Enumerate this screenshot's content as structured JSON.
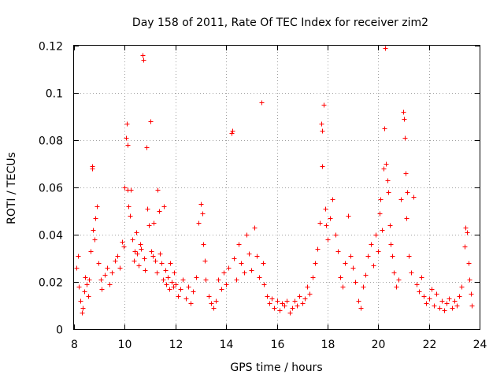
{
  "chart_data": {
    "type": "scatter",
    "title": "Day 158 of 2011, Rate Of TEC Index for receiver zim2",
    "xlabel": "GPS time / hours",
    "ylabel": "ROTI / TECUs",
    "xlim": [
      8,
      24
    ],
    "ylim": [
      0,
      0.12
    ],
    "xticks": [
      8,
      10,
      12,
      14,
      16,
      18,
      20,
      22,
      24
    ],
    "xtick_labels": [
      "8",
      "10",
      "12",
      "14",
      "16",
      "18",
      "20",
      "22",
      "24"
    ],
    "yticks": [
      0,
      0.02,
      0.04,
      0.06,
      0.08,
      0.1,
      0.12
    ],
    "ytick_labels": [
      "0",
      "0.02",
      "0.04",
      "0.06",
      "0.08",
      "0.1",
      "0.12"
    ],
    "grid": true,
    "marker": "+",
    "color": "#ff0000",
    "series": [
      {
        "name": "ROTI",
        "points": [
          [
            8.1,
            0.026
          ],
          [
            8.15,
            0.031
          ],
          [
            8.2,
            0.018
          ],
          [
            8.25,
            0.012
          ],
          [
            8.3,
            0.007
          ],
          [
            8.35,
            0.009
          ],
          [
            8.4,
            0.016
          ],
          [
            8.45,
            0.022
          ],
          [
            8.5,
            0.019
          ],
          [
            8.55,
            0.014
          ],
          [
            8.6,
            0.021
          ],
          [
            8.65,
            0.033
          ],
          [
            8.7,
            0.069
          ],
          [
            8.72,
            0.068
          ],
          [
            8.75,
            0.042
          ],
          [
            8.8,
            0.038
          ],
          [
            8.85,
            0.047
          ],
          [
            8.9,
            0.052
          ],
          [
            8.95,
            0.028
          ],
          [
            9.05,
            0.021
          ],
          [
            9.1,
            0.017
          ],
          [
            9.2,
            0.023
          ],
          [
            9.3,
            0.026
          ],
          [
            9.4,
            0.019
          ],
          [
            9.5,
            0.024
          ],
          [
            9.6,
            0.029
          ],
          [
            9.7,
            0.031
          ],
          [
            9.8,
            0.026
          ],
          [
            9.9,
            0.037
          ],
          [
            9.95,
            0.035
          ],
          [
            10.0,
            0.06
          ],
          [
            10.05,
            0.081
          ],
          [
            10.08,
            0.087
          ],
          [
            10.1,
            0.078
          ],
          [
            10.12,
            0.059
          ],
          [
            10.15,
            0.052
          ],
          [
            10.2,
            0.048
          ],
          [
            10.25,
            0.059
          ],
          [
            10.3,
            0.038
          ],
          [
            10.35,
            0.029
          ],
          [
            10.4,
            0.033
          ],
          [
            10.45,
            0.041
          ],
          [
            10.5,
            0.032
          ],
          [
            10.55,
            0.027
          ],
          [
            10.6,
            0.036
          ],
          [
            10.65,
            0.034
          ],
          [
            10.7,
            0.116
          ],
          [
            10.72,
            0.114
          ],
          [
            10.75,
            0.03
          ],
          [
            10.8,
            0.025
          ],
          [
            10.85,
            0.077
          ],
          [
            10.9,
            0.051
          ],
          [
            10.95,
            0.044
          ],
          [
            11.0,
            0.088
          ],
          [
            11.05,
            0.033
          ],
          [
            11.1,
            0.031
          ],
          [
            11.15,
            0.045
          ],
          [
            11.2,
            0.029
          ],
          [
            11.25,
            0.024
          ],
          [
            11.3,
            0.059
          ],
          [
            11.35,
            0.05
          ],
          [
            11.4,
            0.032
          ],
          [
            11.45,
            0.028
          ],
          [
            11.5,
            0.021
          ],
          [
            11.55,
            0.052
          ],
          [
            11.6,
            0.025
          ],
          [
            11.65,
            0.019
          ],
          [
            11.7,
            0.022
          ],
          [
            11.75,
            0.017
          ],
          [
            11.8,
            0.028
          ],
          [
            11.85,
            0.02
          ],
          [
            11.9,
            0.018
          ],
          [
            11.95,
            0.024
          ],
          [
            12.0,
            0.019
          ],
          [
            12.1,
            0.014
          ],
          [
            12.2,
            0.017
          ],
          [
            12.3,
            0.021
          ],
          [
            12.4,
            0.013
          ],
          [
            12.5,
            0.018
          ],
          [
            12.6,
            0.011
          ],
          [
            12.7,
            0.016
          ],
          [
            12.8,
            0.022
          ],
          [
            12.9,
            0.045
          ],
          [
            13.0,
            0.053
          ],
          [
            13.05,
            0.049
          ],
          [
            13.1,
            0.036
          ],
          [
            13.15,
            0.029
          ],
          [
            13.2,
            0.021
          ],
          [
            13.3,
            0.014
          ],
          [
            13.4,
            0.011
          ],
          [
            13.5,
            0.009
          ],
          [
            13.6,
            0.012
          ],
          [
            13.7,
            0.021
          ],
          [
            13.8,
            0.017
          ],
          [
            13.9,
            0.024
          ],
          [
            14.0,
            0.019
          ],
          [
            14.1,
            0.026
          ],
          [
            14.2,
            0.083
          ],
          [
            14.25,
            0.084
          ],
          [
            14.3,
            0.03
          ],
          [
            14.4,
            0.021
          ],
          [
            14.5,
            0.036
          ],
          [
            14.6,
            0.028
          ],
          [
            14.7,
            0.024
          ],
          [
            14.8,
            0.04
          ],
          [
            14.9,
            0.032
          ],
          [
            15.0,
            0.025
          ],
          [
            15.1,
            0.043
          ],
          [
            15.2,
            0.031
          ],
          [
            15.3,
            0.022
          ],
          [
            15.4,
            0.096
          ],
          [
            15.45,
            0.028
          ],
          [
            15.5,
            0.019
          ],
          [
            15.6,
            0.014
          ],
          [
            15.7,
            0.011
          ],
          [
            15.8,
            0.013
          ],
          [
            15.9,
            0.009
          ],
          [
            16.0,
            0.012
          ],
          [
            16.1,
            0.008
          ],
          [
            16.2,
            0.011
          ],
          [
            16.3,
            0.01
          ],
          [
            16.4,
            0.012
          ],
          [
            16.5,
            0.007
          ],
          [
            16.6,
            0.009
          ],
          [
            16.7,
            0.012
          ],
          [
            16.8,
            0.01
          ],
          [
            16.9,
            0.014
          ],
          [
            17.0,
            0.011
          ],
          [
            17.1,
            0.013
          ],
          [
            17.2,
            0.018
          ],
          [
            17.3,
            0.015
          ],
          [
            17.4,
            0.022
          ],
          [
            17.5,
            0.028
          ],
          [
            17.6,
            0.034
          ],
          [
            17.7,
            0.045
          ],
          [
            17.75,
            0.087
          ],
          [
            17.78,
            0.084
          ],
          [
            17.8,
            0.069
          ],
          [
            17.85,
            0.095
          ],
          [
            17.9,
            0.051
          ],
          [
            17.95,
            0.044
          ],
          [
            18.0,
            0.038
          ],
          [
            18.1,
            0.047
          ],
          [
            18.2,
            0.055
          ],
          [
            18.3,
            0.04
          ],
          [
            18.4,
            0.033
          ],
          [
            18.5,
            0.022
          ],
          [
            18.6,
            0.018
          ],
          [
            18.7,
            0.028
          ],
          [
            18.8,
            0.048
          ],
          [
            18.9,
            0.031
          ],
          [
            19.0,
            0.026
          ],
          [
            19.1,
            0.02
          ],
          [
            19.2,
            0.012
          ],
          [
            19.3,
            0.009
          ],
          [
            19.4,
            0.018
          ],
          [
            19.5,
            0.023
          ],
          [
            19.6,
            0.031
          ],
          [
            19.7,
            0.036
          ],
          [
            19.8,
            0.027
          ],
          [
            19.9,
            0.04
          ],
          [
            20.0,
            0.033
          ],
          [
            20.05,
            0.049
          ],
          [
            20.1,
            0.055
          ],
          [
            20.15,
            0.042
          ],
          [
            20.2,
            0.068
          ],
          [
            20.25,
            0.085
          ],
          [
            20.28,
            0.119
          ],
          [
            20.3,
            0.07
          ],
          [
            20.35,
            0.063
          ],
          [
            20.4,
            0.058
          ],
          [
            20.45,
            0.044
          ],
          [
            20.5,
            0.036
          ],
          [
            20.55,
            0.031
          ],
          [
            20.6,
            0.024
          ],
          [
            20.7,
            0.018
          ],
          [
            20.8,
            0.021
          ],
          [
            20.9,
            0.055
          ],
          [
            21.0,
            0.092
          ],
          [
            21.02,
            0.089
          ],
          [
            21.05,
            0.081
          ],
          [
            21.08,
            0.066
          ],
          [
            21.1,
            0.047
          ],
          [
            21.15,
            0.058
          ],
          [
            21.2,
            0.031
          ],
          [
            21.3,
            0.024
          ],
          [
            21.4,
            0.056
          ],
          [
            21.5,
            0.019
          ],
          [
            21.6,
            0.016
          ],
          [
            21.7,
            0.022
          ],
          [
            21.8,
            0.014
          ],
          [
            21.9,
            0.011
          ],
          [
            22.0,
            0.013
          ],
          [
            22.1,
            0.017
          ],
          [
            22.2,
            0.01
          ],
          [
            22.3,
            0.015
          ],
          [
            22.4,
            0.009
          ],
          [
            22.5,
            0.012
          ],
          [
            22.6,
            0.008
          ],
          [
            22.7,
            0.011
          ],
          [
            22.8,
            0.013
          ],
          [
            22.9,
            0.009
          ],
          [
            23.0,
            0.012
          ],
          [
            23.1,
            0.01
          ],
          [
            23.2,
            0.014
          ],
          [
            23.3,
            0.018
          ],
          [
            23.4,
            0.035
          ],
          [
            23.45,
            0.043
          ],
          [
            23.5,
            0.041
          ],
          [
            23.55,
            0.028
          ],
          [
            23.6,
            0.021
          ],
          [
            23.65,
            0.015
          ],
          [
            23.7,
            0.01
          ]
        ]
      }
    ]
  }
}
